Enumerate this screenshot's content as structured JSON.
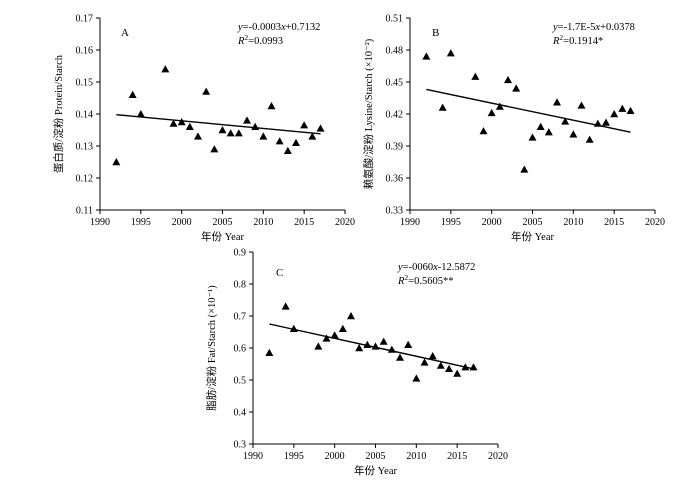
{
  "chart_data": [
    {
      "type": "scatter",
      "panel_label": "A",
      "title": "",
      "xlabel": "年份 Year",
      "ylabel": "蛋白质/淀粉 Protein/Starch",
      "xlim": [
        1990,
        2020
      ],
      "ylim": [
        0.11,
        0.17
      ],
      "xticks": [
        1990,
        1995,
        2000,
        2005,
        2010,
        2015,
        2020
      ],
      "yticks": [
        0.11,
        0.12,
        0.13,
        0.14,
        0.15,
        0.16,
        0.17
      ],
      "ytick_labels": [
        "0.11",
        "0.12",
        "0.13",
        "0.14",
        "0.15",
        "0.16",
        "0.17"
      ],
      "equation": "y=-0.0003x+0.7132",
      "r2": "R2=0.0993",
      "trend": {
        "x": [
          1992,
          2017
        ],
        "y": [
          0.1398,
          0.1338
        ]
      },
      "points": [
        {
          "x": 1992,
          "y": 0.125
        },
        {
          "x": 1994,
          "y": 0.146
        },
        {
          "x": 1995,
          "y": 0.14
        },
        {
          "x": 1998,
          "y": 0.154
        },
        {
          "x": 1999,
          "y": 0.137
        },
        {
          "x": 2000,
          "y": 0.1375
        },
        {
          "x": 2001,
          "y": 0.136
        },
        {
          "x": 2002,
          "y": 0.133
        },
        {
          "x": 2003,
          "y": 0.147
        },
        {
          "x": 2004,
          "y": 0.129
        },
        {
          "x": 2005,
          "y": 0.135
        },
        {
          "x": 2006,
          "y": 0.134
        },
        {
          "x": 2007,
          "y": 0.134
        },
        {
          "x": 2008,
          "y": 0.138
        },
        {
          "x": 2009,
          "y": 0.136
        },
        {
          "x": 2010,
          "y": 0.133
        },
        {
          "x": 2011,
          "y": 0.1425
        },
        {
          "x": 2012,
          "y": 0.1315
        },
        {
          "x": 2013,
          "y": 0.1285
        },
        {
          "x": 2014,
          "y": 0.131
        },
        {
          "x": 2015,
          "y": 0.1365
        },
        {
          "x": 2016,
          "y": 0.133
        },
        {
          "x": 2017,
          "y": 0.1355
        }
      ]
    },
    {
      "type": "scatter",
      "panel_label": "B",
      "title": "",
      "xlabel": "年份 Year",
      "ylabel": "赖氨酸/淀粉 Lysine/Starch (×10⁻²)",
      "xlim": [
        1990,
        2020
      ],
      "ylim": [
        0.33,
        0.51
      ],
      "xticks": [
        1990,
        1995,
        2000,
        2005,
        2010,
        2015,
        2020
      ],
      "yticks": [
        0.33,
        0.36,
        0.39,
        0.42,
        0.45,
        0.48,
        0.51
      ],
      "ytick_labels": [
        "0.33",
        "0.36",
        "0.39",
        "0.42",
        "0.45",
        "0.48",
        "0.51"
      ],
      "equation": "y=-1.7E-5x+0.0378",
      "r2": "R2=0.1914*",
      "trend": {
        "x": [
          1992,
          2017
        ],
        "y": [
          0.443,
          0.403
        ]
      },
      "points": [
        {
          "x": 1992,
          "y": 0.474
        },
        {
          "x": 1994,
          "y": 0.426
        },
        {
          "x": 1995,
          "y": 0.477
        },
        {
          "x": 1998,
          "y": 0.455
        },
        {
          "x": 1999,
          "y": 0.404
        },
        {
          "x": 2000,
          "y": 0.421
        },
        {
          "x": 2001,
          "y": 0.427
        },
        {
          "x": 2002,
          "y": 0.452
        },
        {
          "x": 2003,
          "y": 0.444
        },
        {
          "x": 2004,
          "y": 0.368
        },
        {
          "x": 2005,
          "y": 0.398
        },
        {
          "x": 2006,
          "y": 0.408
        },
        {
          "x": 2007,
          "y": 0.403
        },
        {
          "x": 2008,
          "y": 0.431
        },
        {
          "x": 2009,
          "y": 0.413
        },
        {
          "x": 2010,
          "y": 0.401
        },
        {
          "x": 2011,
          "y": 0.428
        },
        {
          "x": 2012,
          "y": 0.396
        },
        {
          "x": 2013,
          "y": 0.411
        },
        {
          "x": 2014,
          "y": 0.412
        },
        {
          "x": 2015,
          "y": 0.42
        },
        {
          "x": 2016,
          "y": 0.425
        },
        {
          "x": 2017,
          "y": 0.423
        }
      ]
    },
    {
      "type": "scatter",
      "panel_label": "C",
      "title": "",
      "xlabel": "年份 Year",
      "ylabel": "脂肪/淀粉 Fat/Starch (×10⁻¹)",
      "xlim": [
        1990,
        2020
      ],
      "ylim": [
        0.3,
        0.9
      ],
      "xticks": [
        1990,
        1995,
        2000,
        2005,
        2010,
        2015,
        2020
      ],
      "yticks": [
        0.3,
        0.4,
        0.5,
        0.6,
        0.7,
        0.8,
        0.9
      ],
      "ytick_labels": [
        "0.3",
        "0.4",
        "0.5",
        "0.6",
        "0.7",
        "0.8",
        "0.9"
      ],
      "equation": "y=-0060x-12.5872",
      "r2": "R2=0.5605**",
      "trend": {
        "x": [
          1992,
          2017
        ],
        "y": [
          0.675,
          0.535
        ]
      },
      "points": [
        {
          "x": 1992,
          "y": 0.585
        },
        {
          "x": 1994,
          "y": 0.73
        },
        {
          "x": 1995,
          "y": 0.66
        },
        {
          "x": 1998,
          "y": 0.605
        },
        {
          "x": 1999,
          "y": 0.63
        },
        {
          "x": 2000,
          "y": 0.64
        },
        {
          "x": 2001,
          "y": 0.66
        },
        {
          "x": 2002,
          "y": 0.7
        },
        {
          "x": 2003,
          "y": 0.6
        },
        {
          "x": 2004,
          "y": 0.61
        },
        {
          "x": 2005,
          "y": 0.605
        },
        {
          "x": 2006,
          "y": 0.62
        },
        {
          "x": 2007,
          "y": 0.595
        },
        {
          "x": 2008,
          "y": 0.57
        },
        {
          "x": 2009,
          "y": 0.61
        },
        {
          "x": 2010,
          "y": 0.505
        },
        {
          "x": 2011,
          "y": 0.555
        },
        {
          "x": 2012,
          "y": 0.575
        },
        {
          "x": 2013,
          "y": 0.545
        },
        {
          "x": 2014,
          "y": 0.535
        },
        {
          "x": 2015,
          "y": 0.52
        },
        {
          "x": 2016,
          "y": 0.54
        },
        {
          "x": 2017,
          "y": 0.54
        }
      ]
    }
  ]
}
